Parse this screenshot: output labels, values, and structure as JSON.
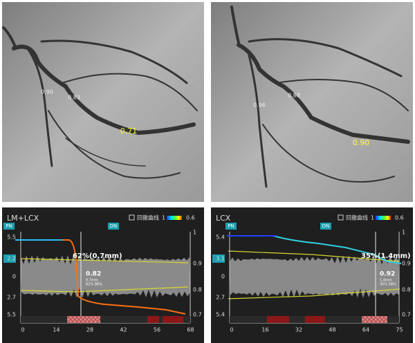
{
  "angiograms": [
    {
      "labels": [
        "0.90",
        "0.83",
        "0.71"
      ]
    },
    {
      "labels": [
        "0.96",
        "0.88",
        "0.90"
      ]
    }
  ],
  "panels": [
    {
      "title": "LM+LCX",
      "legend": "回撤曲线",
      "legend_max": "1",
      "legend_min": "0.6",
      "pn": "PN",
      "dn": "DN",
      "left_axis": [
        "5.5",
        "2.2",
        "0",
        "2.7",
        "5.5"
      ],
      "right_axis": [
        "1",
        "0.9",
        "0.8",
        "0.7"
      ],
      "x_axis": [
        "0",
        "14",
        "28",
        "42",
        "56",
        "68"
      ],
      "stenosis": "62%(0.7mm)",
      "qfr": "0.82",
      "diameter": "0.7mm",
      "stats": "62% 86%"
    },
    {
      "title": "LCX",
      "legend": "回撤曲线",
      "legend_max": "1",
      "legend_min": "0.6",
      "pn": "PN",
      "dn": "DN",
      "left_axis": [
        "5.4",
        "3.1",
        "0",
        "2.7",
        "5.4"
      ],
      "right_axis": [
        "1",
        "0.9",
        "0.8",
        "0.7"
      ],
      "x_axis": [
        "0",
        "16",
        "32",
        "48",
        "64",
        "75"
      ],
      "stenosis": "35%(1.4mm)",
      "qfr": "0.92",
      "diameter": "1.4mm",
      "stats": "35% 58%"
    }
  ]
}
